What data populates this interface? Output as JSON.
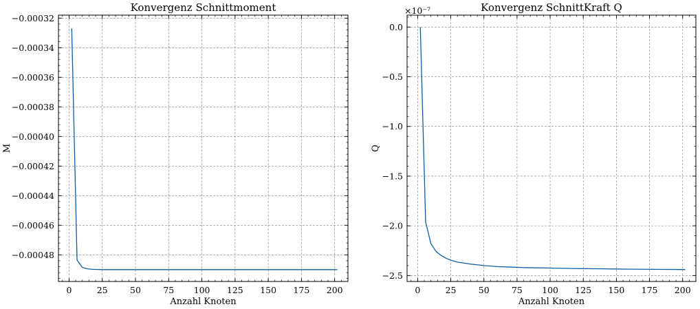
{
  "figure": {
    "background": "#ffffff",
    "line_color": "#0c5da5",
    "grid_color": "#808080"
  },
  "chart_data": [
    {
      "type": "line",
      "title": "Konvergenz Schnittmoment",
      "xlabel": "Anzahl Knoten",
      "ylabel": "M",
      "offset_label": "",
      "xlim": [
        -8,
        210
      ],
      "ylim": [
        -0.000498,
        -0.000318
      ],
      "xticks": [
        0,
        25,
        50,
        75,
        100,
        125,
        150,
        175,
        200
      ],
      "xtick_labels": [
        "0",
        "25",
        "50",
        "75",
        "100",
        "125",
        "150",
        "175",
        "200"
      ],
      "yticks": [
        -0.00032,
        -0.00034,
        -0.00036,
        -0.00038,
        -0.0004,
        -0.00042,
        -0.00044,
        -0.00046,
        -0.00048
      ],
      "ytick_labels": [
        "−0.00032",
        "−0.00034",
        "−0.00036",
        "−0.00038",
        "−0.00040",
        "−0.00042",
        "−0.00044",
        "−0.00046",
        "−0.00048"
      ],
      "grid": true,
      "series": [
        {
          "x": [
            2,
            6,
            10,
            14,
            18,
            22,
            26,
            30,
            40,
            50,
            60,
            80,
            100,
            120,
            140,
            160,
            180,
            202
          ],
          "y": [
            -0.000327,
            -0.0004835,
            -0.0004885,
            -0.0004895,
            -0.0004898,
            -0.0004899,
            -0.00049,
            -0.00049,
            -0.00049,
            -0.00049,
            -0.00049,
            -0.00049,
            -0.00049,
            -0.00049,
            -0.00049,
            -0.00049,
            -0.00049,
            -0.00049
          ]
        }
      ]
    },
    {
      "type": "line",
      "title": "Konvergenz SchnittKraft Q",
      "xlabel": "Anzahl Knoten",
      "ylabel": "Q",
      "offset_label": "×10⁻⁷",
      "xlim": [
        -8,
        210
      ],
      "ylim": [
        -2.56,
        0.12
      ],
      "xticks": [
        0,
        25,
        50,
        75,
        100,
        125,
        150,
        175,
        200
      ],
      "xtick_labels": [
        "0",
        "25",
        "50",
        "75",
        "100",
        "125",
        "150",
        "175",
        "200"
      ],
      "yticks": [
        0.0,
        -0.5,
        -1.0,
        -1.5,
        -2.0,
        -2.5
      ],
      "ytick_labels": [
        "0.0",
        "−0.5",
        "−1.0",
        "−1.5",
        "−2.0",
        "−2.5"
      ],
      "grid": true,
      "series": [
        {
          "x": [
            2,
            6,
            10,
            14,
            18,
            22,
            26,
            30,
            40,
            50,
            60,
            70,
            80,
            100,
            120,
            140,
            160,
            180,
            202
          ],
          "y": [
            0.0,
            -1.96,
            -2.18,
            -2.26,
            -2.3,
            -2.33,
            -2.35,
            -2.365,
            -2.385,
            -2.4,
            -2.41,
            -2.415,
            -2.42,
            -2.425,
            -2.43,
            -2.433,
            -2.436,
            -2.438,
            -2.44
          ]
        }
      ]
    }
  ]
}
